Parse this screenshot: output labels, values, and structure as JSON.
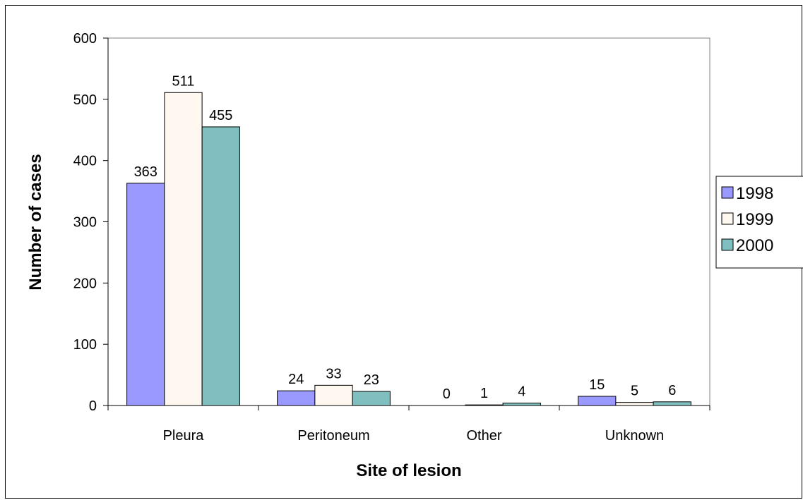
{
  "chart_data": {
    "type": "bar",
    "title": "",
    "xlabel": "Site of lesion",
    "ylabel": "Number of cases",
    "categories": [
      "Pleura",
      "Peritoneum",
      "Other",
      "Unknown"
    ],
    "series": [
      {
        "name": "1998",
        "values": [
          363,
          24,
          0,
          15
        ],
        "color": "#9999ff"
      },
      {
        "name": "1999",
        "values": [
          511,
          33,
          1,
          5
        ],
        "color": "#fff8f0"
      },
      {
        "name": "2000",
        "values": [
          455,
          23,
          4,
          6
        ],
        "color": "#7fbfbf"
      }
    ],
    "ylim": [
      0,
      600
    ],
    "yticks": [
      0,
      100,
      200,
      300,
      400,
      500,
      600
    ],
    "data_labels": true,
    "grid": false,
    "legend": "right"
  }
}
